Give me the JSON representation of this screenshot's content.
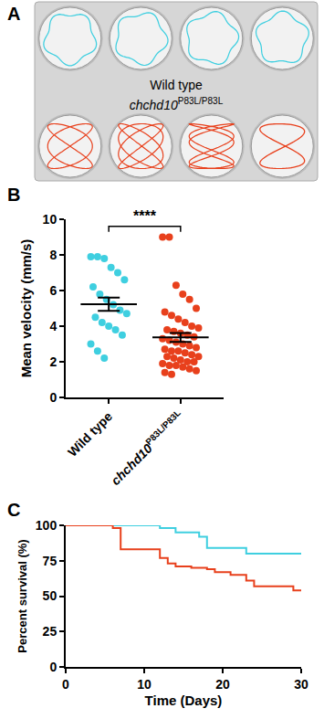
{
  "panel_a": {
    "panel": "A",
    "type": "image",
    "wells_per_row": 4,
    "rows": [
      {
        "label": "Wild type",
        "color": "#3fcfe0"
      },
      {
        "label": "chchd10",
        "label_superscript": "P83L/P83L",
        "color": "#e8401c"
      }
    ]
  },
  "chart_data": [
    {
      "panel": "B",
      "type": "strip",
      "ylabel": "Mean velocity (mm/s)",
      "ylim": [
        0,
        10
      ],
      "yticks": [
        0,
        2,
        4,
        6,
        8,
        10
      ],
      "grid": false,
      "marker": "circle",
      "groups": [
        {
          "label": "Wild type",
          "color": "#3fcfe0",
          "values": [
            7.9,
            7.9,
            7.8,
            7.3,
            7.0,
            6.6,
            6.2,
            5.8,
            5.5,
            5.2,
            4.9,
            4.7,
            4.5,
            4.2,
            4.0,
            3.8,
            3.5,
            3.0,
            2.6,
            2.2
          ],
          "mean": 5.23,
          "sem": 0.37
        },
        {
          "label": "chchd10",
          "label_superscript": "P83L/P83L",
          "color": "#e8401c",
          "values": [
            9.0,
            9.0,
            6.3,
            5.8,
            5.5,
            5.0,
            4.8,
            4.6,
            4.4,
            4.2,
            4.0,
            3.9,
            3.8,
            3.7,
            3.6,
            3.5,
            3.4,
            3.3,
            3.2,
            3.1,
            3.0,
            2.9,
            2.8,
            2.7,
            2.6,
            2.6,
            2.5,
            2.4,
            2.3,
            2.3,
            2.2,
            2.1,
            2.0,
            2.0,
            1.9,
            1.8,
            1.8,
            1.7,
            1.6,
            1.5,
            1.4,
            1.3
          ],
          "mean": 3.37,
          "sem": 0.25
        }
      ],
      "annotations": [
        {
          "text": "****",
          "from": 0,
          "to": 1
        }
      ]
    },
    {
      "panel": "C",
      "type": "line",
      "line_style": "step",
      "grid": false,
      "xlabel": "Time (Days)",
      "ylabel": "Percent survival (%)",
      "xlim": [
        0,
        30
      ],
      "xticks": [
        0,
        10,
        20,
        30
      ],
      "ylim": [
        0,
        100
      ],
      "yticks": [
        0,
        25,
        50,
        75,
        100
      ],
      "series": [
        {
          "color": "#3fcfe0",
          "x": [
            0,
            12,
            14,
            17,
            18,
            23,
            30
          ],
          "values": [
            100,
            98,
            95,
            92,
            84,
            80,
            80
          ]
        },
        {
          "color": "#e8401c",
          "x": [
            0,
            6,
            7,
            12,
            13,
            14,
            16,
            18,
            19,
            21,
            23,
            24,
            29,
            30
          ],
          "values": [
            100,
            98,
            83,
            77,
            73,
            71,
            70,
            69,
            67,
            65,
            61,
            57,
            54,
            54
          ]
        }
      ]
    }
  ]
}
